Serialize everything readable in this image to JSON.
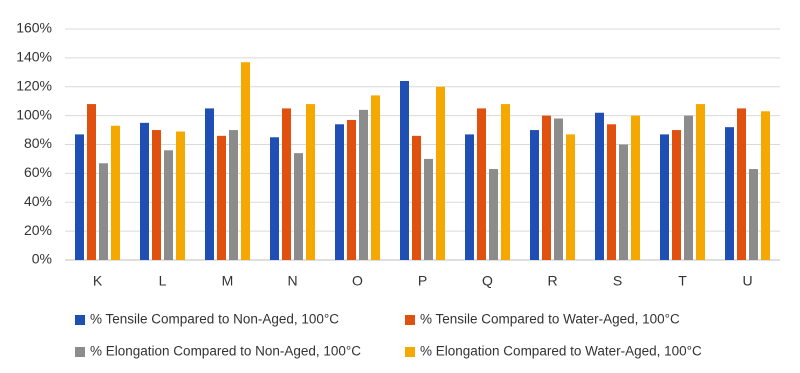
{
  "chart_data": {
    "type": "bar",
    "categories": [
      "K",
      "L",
      "M",
      "N",
      "O",
      "P",
      "Q",
      "R",
      "S",
      "T",
      "U"
    ],
    "series": [
      {
        "name": "% Tensile Compared to Non-Aged, 100°C",
        "color": "#1f4eb4",
        "values": [
          87,
          95,
          105,
          85,
          94,
          124,
          87,
          90,
          102,
          87,
          92
        ]
      },
      {
        "name": "% Tensile Compared to Water-Aged, 100°C",
        "color": "#e0500f",
        "values": [
          108,
          90,
          86,
          105,
          97,
          86,
          105,
          100,
          94,
          90,
          105
        ]
      },
      {
        "name": "% Elongation Compared to Non-Aged, 100°C",
        "color": "#8c8c8c",
        "values": [
          67,
          76,
          90,
          74,
          104,
          70,
          63,
          98,
          80,
          100,
          63
        ]
      },
      {
        "name": "% Elongation Compared to Water-Aged, 100°C",
        "color": "#f5a800",
        "values": [
          93,
          89,
          137,
          108,
          114,
          120,
          108,
          87,
          100,
          108,
          103
        ]
      }
    ],
    "ylim": [
      0,
      160
    ],
    "yticks": [
      {
        "value": 0,
        "label": "0%"
      },
      {
        "value": 20,
        "label": "20%"
      },
      {
        "value": 40,
        "label": "40%"
      },
      {
        "value": 60,
        "label": "60%"
      },
      {
        "value": 80,
        "label": "80%"
      },
      {
        "value": 100,
        "label": "100%"
      },
      {
        "value": 120,
        "label": "120%"
      },
      {
        "value": 140,
        "label": "140%"
      },
      {
        "value": 160,
        "label": "160%"
      }
    ],
    "grid": true,
    "legend": "bottom"
  }
}
